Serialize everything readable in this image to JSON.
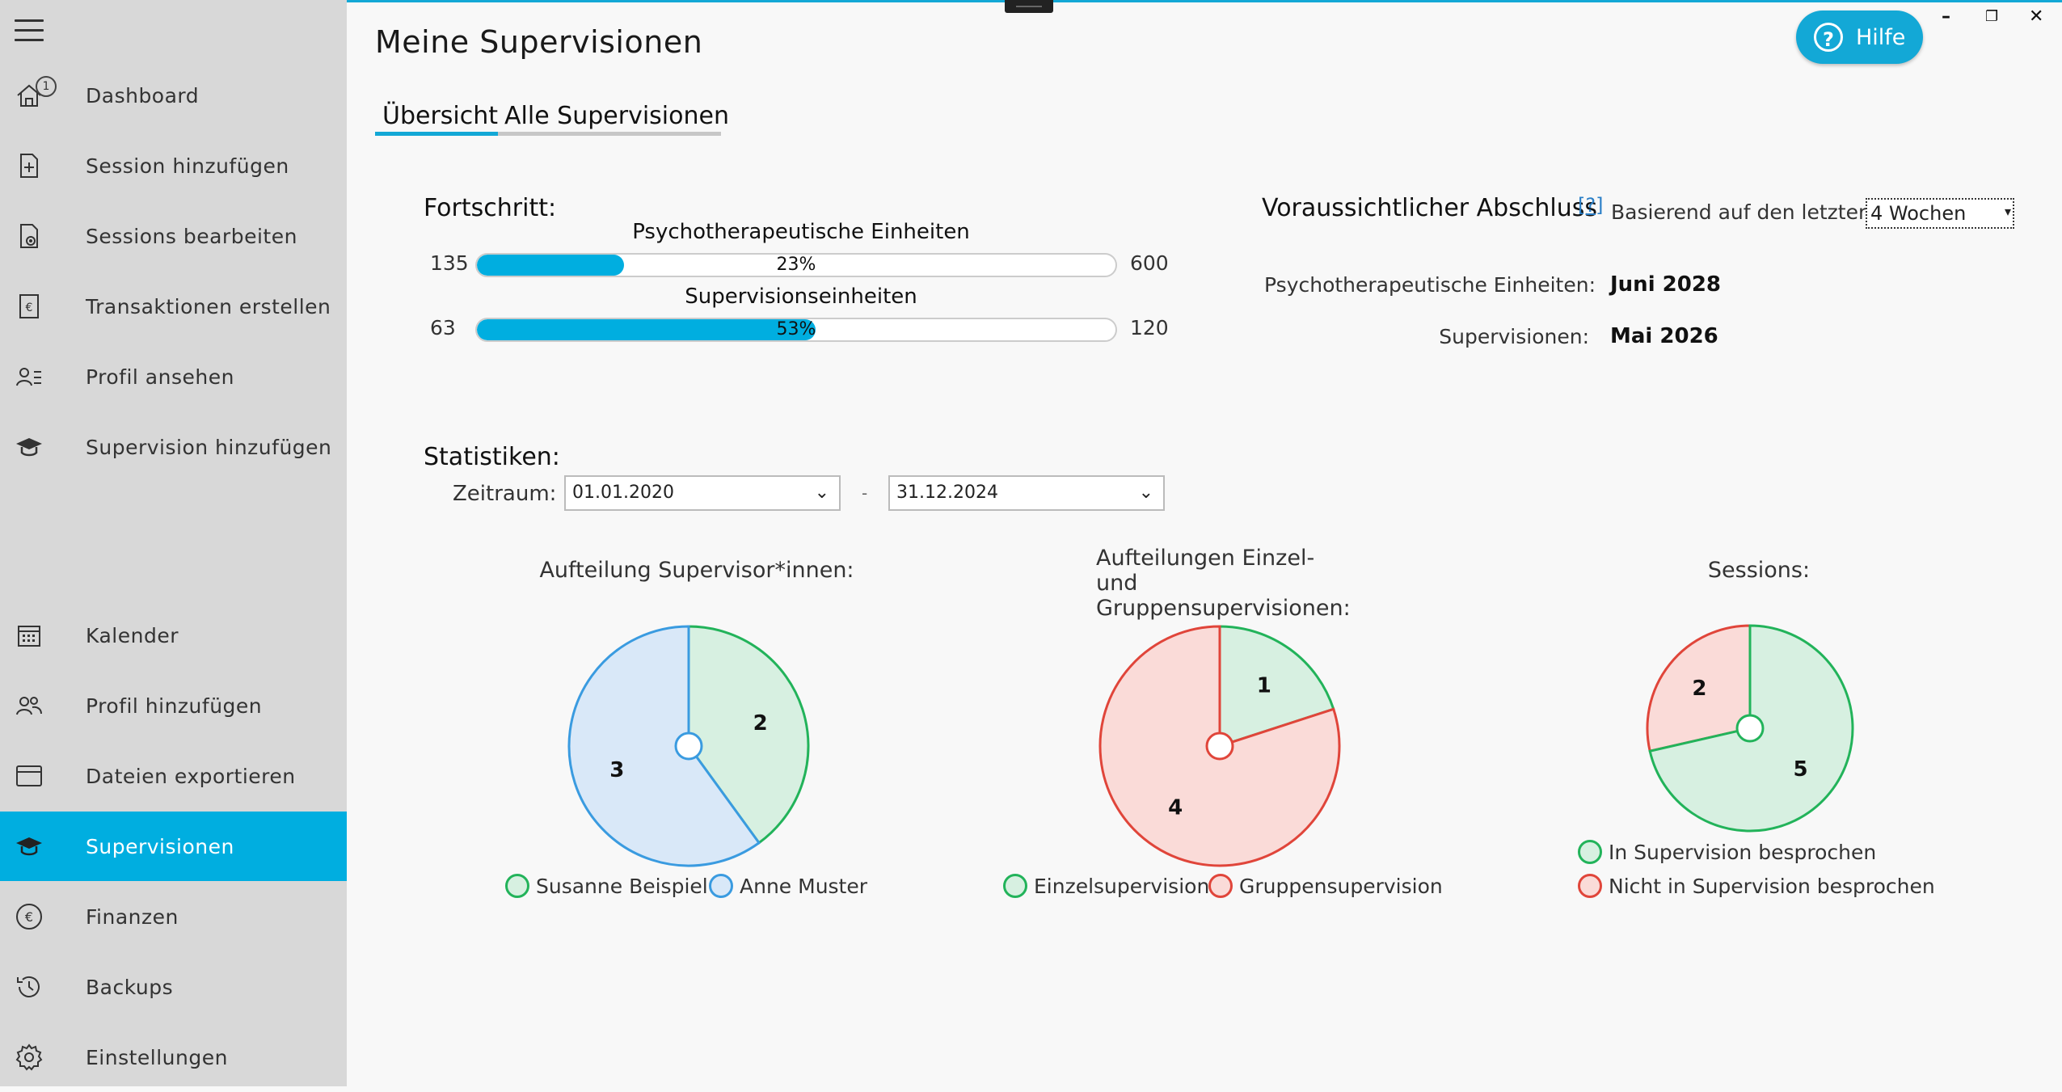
{
  "page_title": "Meine Supervisionen",
  "tabs": [
    {
      "label": "Übersicht",
      "active": true
    },
    {
      "label": "Alle Supervisionen",
      "active": false
    }
  ],
  "help_button": {
    "label": "Hilfe",
    "glyph": "?"
  },
  "window_controls": {
    "minimize": "–",
    "restore": "❐",
    "close": "✕"
  },
  "sidebar": {
    "dashboard_badge": "1",
    "items": [
      {
        "label": "Dashboard",
        "icon": "home-icon"
      },
      {
        "label": "Session hinzufügen",
        "icon": "add-document-icon"
      },
      {
        "label": "Sessions bearbeiten",
        "icon": "edit-document-icon"
      },
      {
        "label": "Transaktionen erstellen",
        "icon": "euro-document-icon"
      },
      {
        "label": "Profil ansehen",
        "icon": "profile-list-icon"
      },
      {
        "label": "Supervision hinzufügen",
        "icon": "graduation-cap-icon"
      },
      {
        "label": "Kalender",
        "icon": "calendar-icon"
      },
      {
        "label": "Profil hinzufügen",
        "icon": "add-people-icon"
      },
      {
        "label": "Dateien exportieren",
        "icon": "archive-icon"
      },
      {
        "label": "Supervisionen",
        "icon": "graduation-cap-icon",
        "active": true
      },
      {
        "label": "Finanzen",
        "icon": "euro-circle-icon"
      },
      {
        "label": "Backups",
        "icon": "history-icon"
      },
      {
        "label": "Einstellungen",
        "icon": "gear-icon"
      }
    ]
  },
  "progress": {
    "title": "Fortschritt:",
    "bars": [
      {
        "title": "Psychotherapeutische Einheiten",
        "current": "135",
        "target": "600",
        "percent_label": "23%",
        "fraction": 0.23
      },
      {
        "title": "Supervisionseinheiten",
        "current": "63",
        "target": "120",
        "percent_label": "53%",
        "fraction": 0.53
      }
    ]
  },
  "estimate": {
    "title": "Voraussichtlicher Abschluss",
    "help_link": "[?]",
    "basis_label": "Basierend auf den letzten:",
    "basis_value": "4 Wochen",
    "rows": [
      {
        "label": "Psychotherapeutische Einheiten:",
        "value": "Juni 2028"
      },
      {
        "label": "Supervisionen:",
        "value": "Mai 2026"
      }
    ]
  },
  "statistics": {
    "title": "Statistiken:",
    "period_label": "Zeitraum:",
    "date_from": "01.01.2020",
    "separator": "-",
    "date_to": "31.12.2024"
  },
  "colors": {
    "accent": "#00aee0",
    "green_stroke": "#22b35a",
    "green_fill": "#d7f0e1",
    "blue_stroke": "#3a9be0",
    "blue_fill": "#d9e8f8",
    "red_stroke": "#e0453a",
    "red_fill": "#fadbd8"
  },
  "chart_data": [
    {
      "type": "pie",
      "title": "Aufteilung Supervisor*innen:",
      "slices": [
        {
          "label": "Susanne Beispiel",
          "value": 2,
          "color": "green"
        },
        {
          "label": "Anne Muster",
          "value": 3,
          "color": "blue"
        }
      ]
    },
    {
      "type": "pie",
      "title": "Aufteilungen Einzel- und Gruppensupervisionen:",
      "slices": [
        {
          "label": "Einzelsupervision",
          "value": 1,
          "color": "green"
        },
        {
          "label": "Gruppensupervision",
          "value": 4,
          "color": "red"
        }
      ]
    },
    {
      "type": "pie",
      "title": "Sessions:",
      "slices": [
        {
          "label": "In Supervision besprochen",
          "value": 5,
          "color": "green"
        },
        {
          "label": "Nicht in Supervision besprochen",
          "value": 2,
          "color": "red"
        }
      ]
    }
  ]
}
